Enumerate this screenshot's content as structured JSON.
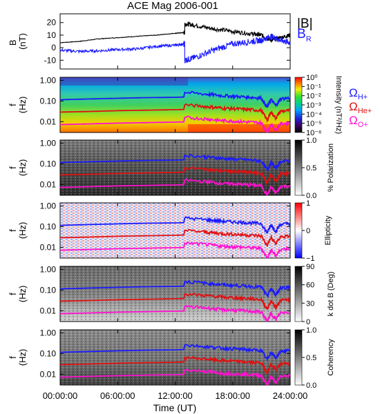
{
  "title": "ACE Mag 2006-001",
  "xlabel": "Time (UT)",
  "x_ticks": [
    "00:00:00",
    "06:00:00",
    "12:00:00",
    "18:00:00",
    "24:00:00"
  ],
  "freq_ticks": [
    "1.00",
    "0.10",
    "0.01"
  ],
  "freq_ylabel": [
    "f",
    "(Hz)"
  ],
  "gyro_labels": [
    {
      "base": "Ω",
      "sub": "H+",
      "color": "#1a1aff"
    },
    {
      "base": "Ω",
      "sub": "He+",
      "color": "#e01010"
    },
    {
      "base": "Ω",
      "sub": "O+",
      "color": "#ff10d0"
    }
  ],
  "colors": {
    "B": "#000000",
    "BR": "#1a1aff",
    "H": "#1a1aff",
    "He": "#e01010",
    "O": "#ff10d0"
  },
  "chart_data": [
    {
      "type": "line",
      "ylabel": [
        "B",
        "(nT)"
      ],
      "ylim": [
        -17,
        27
      ],
      "xlim": [
        0,
        24
      ],
      "y_ticks": [
        "20",
        "10",
        "0",
        "-10"
      ],
      "legend": [
        {
          "label": "|B|",
          "sub": "",
          "color": "#000000"
        },
        {
          "label": "B",
          "sub": "R",
          "color": "#1a1aff"
        }
      ],
      "series": [
        {
          "name": "|B|",
          "x": [
            0,
            2,
            4,
            6,
            8,
            10,
            12,
            12.9,
            13,
            14,
            16,
            18,
            20,
            21,
            22,
            23,
            24
          ],
          "y": [
            4,
            5,
            7,
            8,
            9,
            10,
            11.5,
            12,
            19,
            18,
            15,
            13,
            11,
            10,
            6,
            8,
            10
          ]
        },
        {
          "name": "BR",
          "x": [
            0,
            2,
            4,
            6,
            8,
            10,
            12,
            12.9,
            13,
            14,
            16,
            18,
            20,
            21,
            22,
            23,
            24
          ],
          "y": [
            -2,
            -3,
            -2.5,
            -1.5,
            -1,
            1,
            2,
            3,
            -10,
            -8,
            -2,
            3,
            5,
            6,
            9,
            6,
            4
          ]
        }
      ]
    },
    {
      "type": "heatmap",
      "colorbar_label": "Intensity (nT²/Hz)",
      "colorbar_ticks": [
        "10⁰",
        "10⁻¹",
        "10⁻²",
        "10⁻³",
        "10⁻⁴",
        "10⁻⁵",
        "10⁻⁶"
      ]
    },
    {
      "type": "heatmap",
      "colorbar_label": "% Polarization",
      "colorbar_ticks": [
        "1.0",
        "0.5",
        "0.0"
      ]
    },
    {
      "type": "heatmap",
      "colorbar_label": "Ellipticity",
      "colorbar_ticks": [
        "1",
        "0",
        "−1"
      ]
    },
    {
      "type": "heatmap",
      "colorbar_label": "k dot B (Deg)",
      "colorbar_ticks": [
        "90",
        "60",
        "30",
        "0"
      ]
    },
    {
      "type": "heatmap",
      "colorbar_label": "Coherency",
      "colorbar_ticks": [
        "1.0",
        "0.5",
        "0.0"
      ]
    }
  ],
  "gyro_lines": {
    "x": [
      0,
      3,
      6,
      9,
      12,
      12.9,
      13,
      15,
      16,
      17,
      18,
      19,
      20,
      21,
      21.6,
      22,
      22.5,
      23,
      24
    ],
    "H_hz": [
      0.115,
      0.125,
      0.135,
      0.145,
      0.15,
      0.155,
      0.26,
      0.22,
      0.2,
      0.18,
      0.17,
      0.16,
      0.15,
      0.14,
      0.05,
      0.12,
      0.06,
      0.13,
      0.14
    ],
    "He_hz": [
      0.029,
      0.031,
      0.034,
      0.036,
      0.038,
      0.039,
      0.065,
      0.055,
      0.05,
      0.045,
      0.043,
      0.04,
      0.038,
      0.035,
      0.012,
      0.03,
      0.015,
      0.032,
      0.035
    ],
    "O_hz": [
      0.0072,
      0.0078,
      0.0085,
      0.009,
      0.0095,
      0.0097,
      0.016,
      0.014,
      0.0125,
      0.0112,
      0.0107,
      0.01,
      0.0095,
      0.0088,
      0.003,
      0.0075,
      0.0038,
      0.008,
      0.0087
    ]
  }
}
